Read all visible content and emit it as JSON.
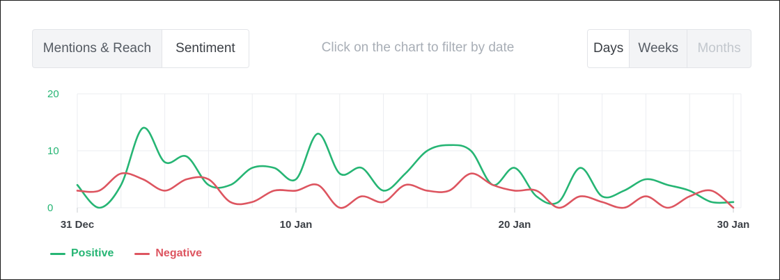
{
  "toolbar": {
    "view_tabs": [
      "Mentions & Reach",
      "Sentiment"
    ],
    "active_view": "Sentiment",
    "hint": "Click on the chart to filter by date",
    "period_tabs": [
      "Days",
      "Weeks",
      "Months"
    ],
    "active_period": "Days",
    "disabled_period": "Months"
  },
  "chart_data": {
    "type": "line",
    "smooth": true,
    "x": [
      "2019-12-31",
      "2020-01-01",
      "2020-01-02",
      "2020-01-03",
      "2020-01-04",
      "2020-01-05",
      "2020-01-06",
      "2020-01-07",
      "2020-01-08",
      "2020-01-09",
      "2020-01-10",
      "2020-01-11",
      "2020-01-12",
      "2020-01-13",
      "2020-01-14",
      "2020-01-15",
      "2020-01-16",
      "2020-01-17",
      "2020-01-18",
      "2020-01-19",
      "2020-01-20",
      "2020-01-21",
      "2020-01-22",
      "2020-01-23",
      "2020-01-24",
      "2020-01-25",
      "2020-01-26",
      "2020-01-27",
      "2020-01-28",
      "2020-01-29",
      "2020-01-30"
    ],
    "x_ticks": [
      {
        "date": "2019-12-31",
        "label": "31 Dec"
      },
      {
        "date": "2020-01-10",
        "label": "10 Jan"
      },
      {
        "date": "2020-01-20",
        "label": "20 Jan"
      },
      {
        "date": "2020-01-30",
        "label": "30 Jan"
      }
    ],
    "series": [
      {
        "name": "Positive",
        "color": "#26b574",
        "values": [
          4,
          0,
          4,
          14,
          8,
          9,
          4,
          4,
          7,
          7,
          5,
          13,
          6,
          7,
          3,
          6,
          10,
          11,
          10,
          4,
          7,
          2,
          1,
          7,
          2,
          3,
          5,
          4,
          3,
          1,
          1
        ]
      },
      {
        "name": "Negative",
        "color": "#dd5560",
        "values": [
          3,
          3,
          6,
          5,
          3,
          5,
          5,
          1,
          1,
          3,
          3,
          4,
          0,
          2,
          1,
          4,
          3,
          3,
          6,
          4,
          3,
          3,
          0,
          2,
          1,
          0,
          2,
          0,
          2,
          3,
          0
        ]
      }
    ],
    "yticks": [
      0,
      10,
      20
    ],
    "ylim": [
      0,
      20
    ],
    "grid": true,
    "legend": "bottom-left",
    "colors": {
      "axis_label": "#26b574",
      "grid": "#ebedf0",
      "tick_text": "#3b3f45"
    }
  }
}
